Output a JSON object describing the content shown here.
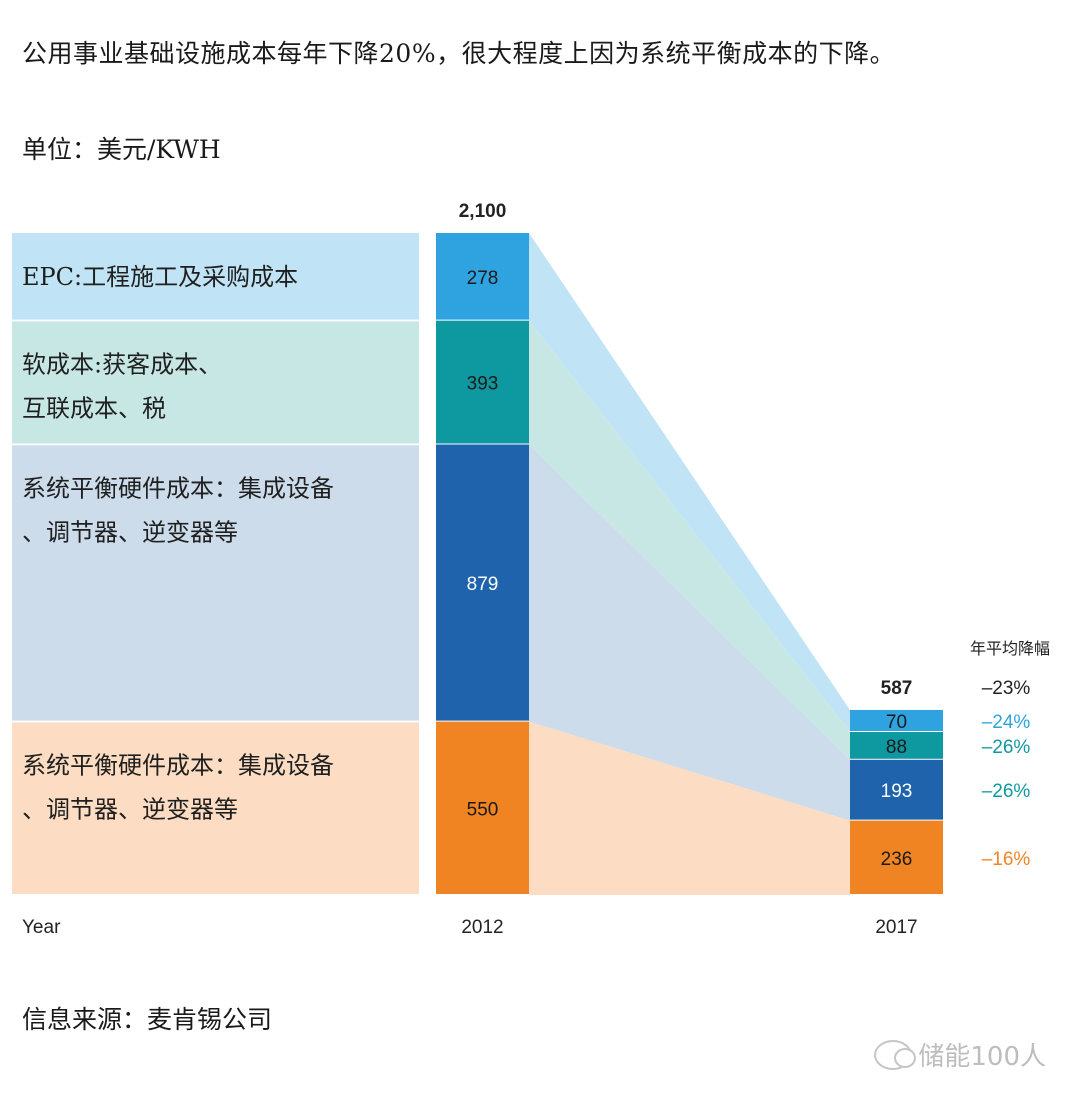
{
  "header": {
    "title": "公用事业基础设施成本每年下降20%，很大程度上因为系统平衡成本的下降。",
    "unit": "单位：美元/KWH"
  },
  "source": "信息来源：麦肯锡公司",
  "watermark": "储能100人",
  "chart_data": {
    "type": "bar",
    "xlabel": "Year",
    "categories": [
      "2012",
      "2017"
    ],
    "totals": [
      2100,
      587
    ],
    "total_labels": [
      "2,100",
      "587"
    ],
    "pct_header": "年平均降幅",
    "total_pct": "–23%",
    "series": [
      {
        "name": "EPC:工程施工及采购成本",
        "label_lines": [
          "EPC:工程施工及采购成本"
        ],
        "values": [
          278,
          70
        ],
        "pct": "–24%",
        "color": "#2ea3e0",
        "band_color": "#c0e4f5",
        "text_color": "#1a1a1a",
        "pct_color": "#2ea3e0"
      },
      {
        "name": "软成本:获客成本、互联成本、税",
        "label_lines": [
          "软成本:获客成本、",
          "互联成本、税"
        ],
        "values": [
          393,
          88
        ],
        "pct": "–26%",
        "color": "#0e98a0",
        "band_color": "#c7e7e5",
        "text_color": "#1a1a1a",
        "pct_color": "#0e98a0"
      },
      {
        "name": "系统平衡硬件成本：集成设备、调节器、逆变器等",
        "label_lines": [
          "系统平衡硬件成本：集成设备",
          "、调节器、逆变器等"
        ],
        "values": [
          879,
          193
        ],
        "pct": "–26%",
        "color": "#1f63ad",
        "band_color": "#ccdceb",
        "text_color": "#ffffff",
        "pct_color": "#0e98a0"
      },
      {
        "name": "系统平衡硬件成本：集成设备、调节器、逆变器等",
        "label_lines": [
          "系统平衡硬件成本：集成设备",
          "、调节器、逆变器等"
        ],
        "values": [
          550,
          236
        ],
        "pct": "–16%",
        "color": "#f08423",
        "band_color": "#fcdcc2",
        "text_color": "#1a1a1a",
        "pct_color": "#f08423"
      }
    ]
  }
}
